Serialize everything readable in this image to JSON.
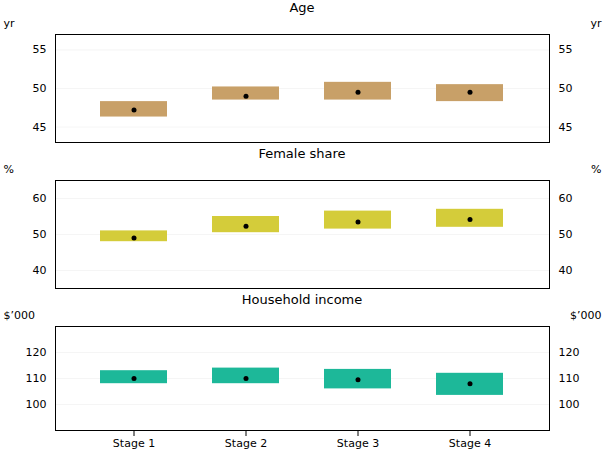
{
  "chart_data": [
    {
      "type": "interval",
      "title": "Age",
      "categories": [
        "Stage 1",
        "Stage 2",
        "Stage 3",
        "Stage 4"
      ],
      "values": [
        47.2,
        49.0,
        49.5,
        49.5
      ],
      "low": [
        46.3,
        48.5,
        48.5,
        48.3
      ],
      "high": [
        48.3,
        50.2,
        50.8,
        50.5
      ],
      "color": "#C8A068",
      "ylim": [
        43,
        57
      ],
      "yticks": [
        45,
        50,
        55
      ],
      "ylabel": "yr",
      "y2lim": [
        43,
        57
      ],
      "y2ticks": [
        45,
        50,
        55
      ],
      "y2label": "yr",
      "grid": true,
      "tick_labels": "y"
    },
    {
      "type": "interval",
      "title": "Female share",
      "categories": [
        "Stage 1",
        "Stage 2",
        "Stage 3",
        "Stage 4"
      ],
      "values": [
        49.0,
        52.3,
        53.5,
        54.2
      ],
      "low": [
        48.0,
        50.5,
        51.5,
        52.0
      ],
      "high": [
        51.0,
        55.0,
        56.5,
        57.0
      ],
      "color": "#D4CC3A",
      "ylim": [
        35,
        65
      ],
      "yticks": [
        40,
        50,
        60
      ],
      "ylabel": "%",
      "y2lim": [
        35,
        65
      ],
      "y2ticks": [
        40,
        50,
        60
      ],
      "y2label": "%",
      "grid": true,
      "tick_labels": "y"
    },
    {
      "type": "interval",
      "title": "Household income",
      "categories": [
        "Stage 1",
        "Stage 2",
        "Stage 3",
        "Stage 4"
      ],
      "values": [
        110.0,
        110.0,
        109.5,
        108.0
      ],
      "low": [
        108.0,
        108.0,
        106.0,
        103.5
      ],
      "high": [
        113.0,
        114.0,
        113.5,
        112.0
      ],
      "color": "#1DB899",
      "ylim": [
        90,
        130
      ],
      "yticks": [
        100,
        110,
        120
      ],
      "ylabel": "$’000",
      "y2lim": [
        90,
        130
      ],
      "y2ticks": [
        100,
        110,
        120
      ],
      "y2label": "$’000",
      "grid": true
    }
  ]
}
